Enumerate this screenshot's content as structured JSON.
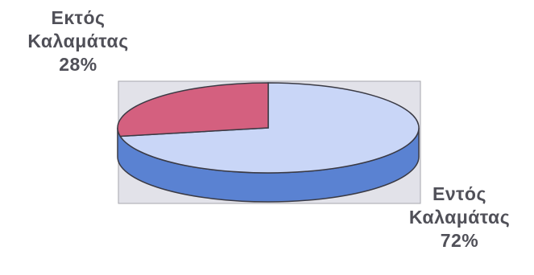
{
  "chart_data": {
    "type": "pie",
    "title": "",
    "three_d": true,
    "slices": [
      {
        "label_lines": [
          "Εκτός",
          "Καλαμάτας"
        ],
        "value": 28,
        "value_label": "28%",
        "color_top": "#d4607f",
        "color_side": "#b04560"
      },
      {
        "label_lines": [
          "Εντός",
          "Καλαμάτας"
        ],
        "value": 72,
        "value_label": "72%",
        "color_top": "#c9d6f7",
        "color_side": "#5a82d2"
      }
    ],
    "plot_area_color": "#e2e2e9",
    "plot_area_border": "#a7a7ae"
  }
}
